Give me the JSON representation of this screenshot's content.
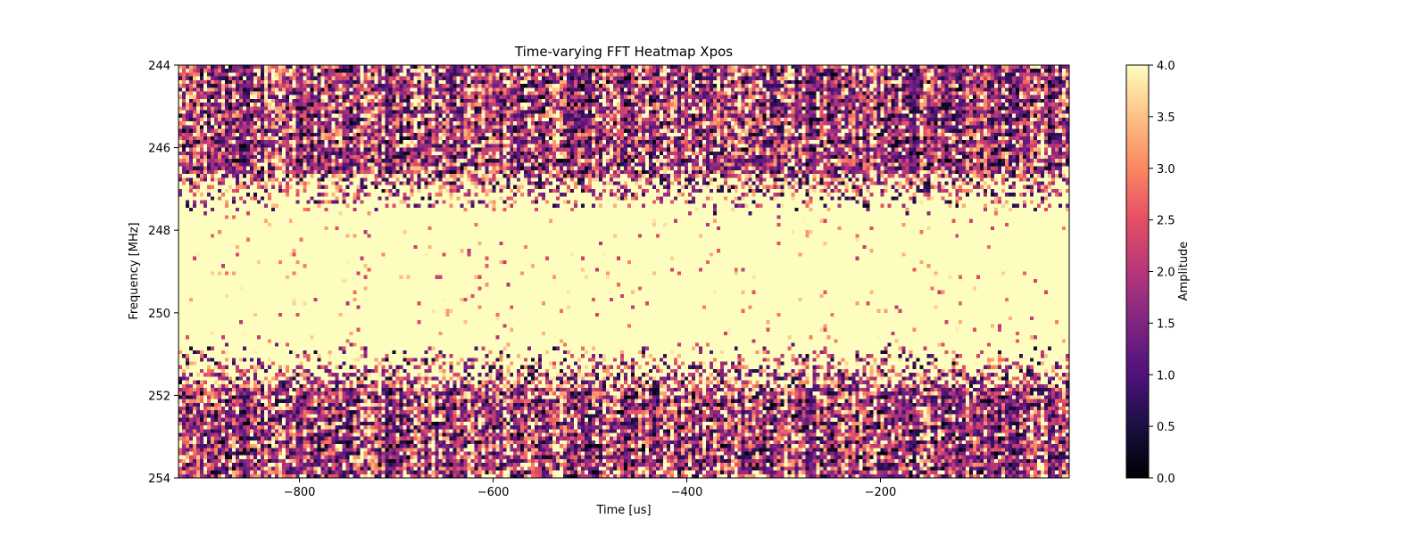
{
  "chart_data": {
    "type": "heatmap",
    "title": "Time-varying FFT Heatmap Xpos",
    "xlabel": "Time [us]",
    "ylabel": "Frequency [MHz]",
    "xlim": [
      -925,
      -5
    ],
    "ylim": [
      244,
      254
    ],
    "y_inverted": true,
    "x_ticks": [
      -800,
      -600,
      -400,
      -200
    ],
    "x_tick_labels": [
      "−800",
      "−600",
      "−400",
      "−200"
    ],
    "y_ticks": [
      244,
      246,
      248,
      250,
      252,
      254
    ],
    "y_tick_labels": [
      "244",
      "246",
      "248",
      "250",
      "252",
      "254"
    ],
    "colormap": "magma",
    "colorbar": {
      "label": "Amplitude",
      "range": [
        0,
        4
      ],
      "ticks": [
        0,
        0.5,
        1,
        1.5,
        2,
        2.5,
        3,
        3.5,
        4
      ],
      "tick_labels": [
        "0.0",
        "0.5",
        "1.0",
        "1.5",
        "2.0",
        "2.5",
        "3.0",
        "3.5",
        "4.0"
      ]
    },
    "center_frequency": 249.2,
    "saturated_band": [
      247.2,
      251.0
    ],
    "value_range": [
      0,
      4
    ],
    "grid": false
  }
}
